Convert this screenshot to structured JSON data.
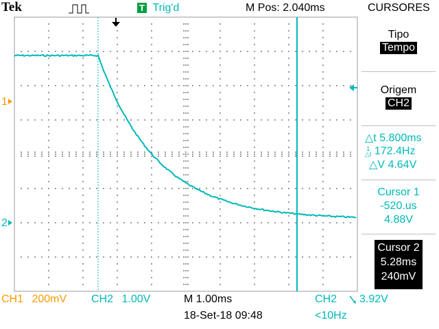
{
  "header": {
    "brand": "Tek",
    "trigger_state_icon": "T",
    "trigger_status": "Trig'd",
    "m_pos": "M Pos: 2.040ms",
    "menu_title": "CURSORES"
  },
  "menu": {
    "tipo_label": "Tipo",
    "tipo_value": "Tempo",
    "origem_label": "Origem",
    "origem_value": "CH2",
    "delta_t": "5.800ms",
    "inv_delta_t": "172.4Hz",
    "delta_v": "4.64V",
    "cursor1_label": "Cursor 1",
    "cursor1_time": "-520.us",
    "cursor1_volt": "4.88V",
    "cursor2_label": "Cursor 2",
    "cursor2_time": "5.28ms",
    "cursor2_volt": "240mV"
  },
  "footer": {
    "ch1_label": "CH1",
    "ch1_scale": "200mV",
    "ch2_label": "CH2",
    "ch2_scale": "1.00V",
    "timebase": "M 1.00ms",
    "trig_source": "CH2",
    "trig_level": "3.92V",
    "datetime": "18-Set-18 09:48",
    "trig_freq": "<10Hz"
  },
  "markers": {
    "ch1": "1",
    "ch2": "2"
  },
  "colors": {
    "ch1": "#ff9900",
    "ch2": "#00b8b8",
    "grid": "#9a9a9a"
  },
  "icons": {
    "trigger_position": "down-arrow-icon",
    "trigger_level": "left-arrow-icon",
    "acquisition_mode": "pulse-icon",
    "slope": "falling-edge-icon"
  }
}
